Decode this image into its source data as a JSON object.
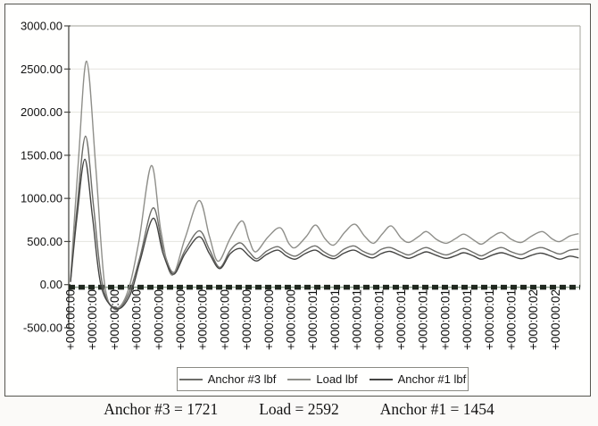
{
  "page": {
    "background": "#fbfaf8",
    "frame_border_color": "#55554f"
  },
  "chart_data": {
    "type": "line",
    "title": "",
    "xlabel": "",
    "ylabel": "",
    "ylim": [
      -500,
      3000
    ],
    "grid": "horizontal-faint",
    "legend_position": "bottom-center",
    "axis_color": "#4a4a46",
    "grid_color": "#e5e4de",
    "plot_border_color": "#b3b3ad",
    "tick_text_color": "#111111",
    "y_ticks": [
      {
        "label": "3000.00",
        "value": 3000
      },
      {
        "label": "2500.00",
        "value": 2500
      },
      {
        "label": "2000.00",
        "value": 2000
      },
      {
        "label": "1500.00",
        "value": 1500
      },
      {
        "label": "1000.00",
        "value": 1000
      },
      {
        "label": "500.00",
        "value": 500
      },
      {
        "label": "0.00",
        "value": 0
      },
      {
        "label": "-500.00",
        "value": -500
      }
    ],
    "x_tick_labels": [
      "+000:00:00",
      "+000:00:00",
      "+000:00:00",
      "+000:00:00",
      "+000:00:00",
      "+000:00:00",
      "+000:00:00",
      "+000:00:00",
      "+000:00:00",
      "+000:00:00",
      "+000:00:00",
      "+000:00:01",
      "+000:00:01",
      "+000:00:01",
      "+000:00:01",
      "+000:00:01",
      "+000:00:01",
      "+000:00:01",
      "+000:00:01",
      "+000:00:01",
      "+000:00:01",
      "+000:00:02",
      "+000:00:02"
    ],
    "baseline": {
      "value": -30,
      "color": "#20281f",
      "underlay_color": "#8ca18c",
      "dash": [
        7,
        4
      ],
      "width": 5.5
    },
    "series": [
      {
        "name": "Anchor #3 lbf",
        "color": "#6e6e6a",
        "peak": 1721,
        "points": [
          [
            0,
            40
          ],
          [
            0.3,
            900
          ],
          [
            0.68,
            1721
          ],
          [
            1.05,
            900
          ],
          [
            1.45,
            0
          ],
          [
            2.05,
            -290
          ],
          [
            2.65,
            -100
          ],
          [
            3.15,
            320
          ],
          [
            3.75,
            890
          ],
          [
            4.2,
            420
          ],
          [
            4.67,
            140
          ],
          [
            5.2,
            400
          ],
          [
            5.84,
            625
          ],
          [
            6.3,
            410
          ],
          [
            6.77,
            200
          ],
          [
            7.25,
            400
          ],
          [
            7.7,
            485
          ],
          [
            8.1,
            380
          ],
          [
            8.45,
            300
          ],
          [
            8.9,
            390
          ],
          [
            9.4,
            440
          ],
          [
            9.8,
            370
          ],
          [
            10.2,
            330
          ],
          [
            10.65,
            400
          ],
          [
            11.1,
            450
          ],
          [
            11.5,
            380
          ],
          [
            11.95,
            330
          ],
          [
            12.4,
            410
          ],
          [
            12.85,
            450
          ],
          [
            13.25,
            390
          ],
          [
            13.7,
            350
          ],
          [
            14.1,
            410
          ],
          [
            14.5,
            430
          ],
          [
            14.95,
            380
          ],
          [
            15.35,
            345
          ],
          [
            15.8,
            400
          ],
          [
            16.15,
            430
          ],
          [
            16.6,
            380
          ],
          [
            17.05,
            345
          ],
          [
            17.5,
            390
          ],
          [
            17.85,
            420
          ],
          [
            18.3,
            370
          ],
          [
            18.65,
            335
          ],
          [
            19.1,
            390
          ],
          [
            19.55,
            430
          ],
          [
            20.0,
            380
          ],
          [
            20.45,
            350
          ],
          [
            20.9,
            400
          ],
          [
            21.35,
            430
          ],
          [
            21.8,
            390
          ],
          [
            22.2,
            355
          ],
          [
            22.65,
            400
          ],
          [
            23.05,
            410
          ]
        ]
      },
      {
        "name": "Load lbf",
        "color": "#8f8f8a",
        "peak": 2592,
        "points": [
          [
            0,
            60
          ],
          [
            0.35,
            1400
          ],
          [
            0.73,
            2592
          ],
          [
            1.15,
            1350
          ],
          [
            1.55,
            0
          ],
          [
            2.05,
            -270
          ],
          [
            2.6,
            -80
          ],
          [
            3.1,
            500
          ],
          [
            3.67,
            1380
          ],
          [
            4.1,
            620
          ],
          [
            4.6,
            110
          ],
          [
            5.2,
            540
          ],
          [
            5.84,
            975
          ],
          [
            6.3,
            560
          ],
          [
            6.7,
            270
          ],
          [
            7.25,
            540
          ],
          [
            7.78,
            740
          ],
          [
            8.1,
            520
          ],
          [
            8.4,
            380
          ],
          [
            8.95,
            550
          ],
          [
            9.51,
            660
          ],
          [
            9.9,
            480
          ],
          [
            10.2,
            430
          ],
          [
            10.7,
            560
          ],
          [
            11.12,
            690
          ],
          [
            11.55,
            530
          ],
          [
            11.95,
            460
          ],
          [
            12.45,
            610
          ],
          [
            12.9,
            700
          ],
          [
            13.35,
            560
          ],
          [
            13.75,
            480
          ],
          [
            14.15,
            590
          ],
          [
            14.55,
            680
          ],
          [
            15.0,
            540
          ],
          [
            15.35,
            490
          ],
          [
            15.8,
            560
          ],
          [
            16.15,
            615
          ],
          [
            16.6,
            525
          ],
          [
            17.05,
            480
          ],
          [
            17.5,
            540
          ],
          [
            17.85,
            585
          ],
          [
            18.3,
            515
          ],
          [
            18.65,
            470
          ],
          [
            19.1,
            550
          ],
          [
            19.55,
            605
          ],
          [
            20.0,
            525
          ],
          [
            20.45,
            490
          ],
          [
            20.9,
            560
          ],
          [
            21.4,
            615
          ],
          [
            21.85,
            530
          ],
          [
            22.2,
            500
          ],
          [
            22.65,
            565
          ],
          [
            23.05,
            590
          ]
        ]
      },
      {
        "name": "Anchor #1 lbf",
        "color": "#454543",
        "peak": 1454,
        "points": [
          [
            0,
            30
          ],
          [
            0.3,
            800
          ],
          [
            0.65,
            1454
          ],
          [
            1.0,
            780
          ],
          [
            1.4,
            -30
          ],
          [
            2.1,
            -280
          ],
          [
            2.7,
            -120
          ],
          [
            3.15,
            270
          ],
          [
            3.75,
            770
          ],
          [
            4.2,
            360
          ],
          [
            4.67,
            120
          ],
          [
            5.2,
            360
          ],
          [
            5.84,
            555
          ],
          [
            6.3,
            360
          ],
          [
            6.77,
            185
          ],
          [
            7.25,
            360
          ],
          [
            7.7,
            420
          ],
          [
            8.1,
            330
          ],
          [
            8.45,
            275
          ],
          [
            8.9,
            350
          ],
          [
            9.4,
            400
          ],
          [
            9.8,
            330
          ],
          [
            10.2,
            295
          ],
          [
            10.65,
            360
          ],
          [
            11.1,
            400
          ],
          [
            11.5,
            340
          ],
          [
            11.95,
            300
          ],
          [
            12.4,
            365
          ],
          [
            12.85,
            400
          ],
          [
            13.25,
            350
          ],
          [
            13.7,
            310
          ],
          [
            14.1,
            360
          ],
          [
            14.5,
            385
          ],
          [
            14.95,
            340
          ],
          [
            15.35,
            305
          ],
          [
            15.8,
            350
          ],
          [
            16.15,
            380
          ],
          [
            16.6,
            340
          ],
          [
            17.05,
            305
          ],
          [
            17.5,
            340
          ],
          [
            17.85,
            370
          ],
          [
            18.3,
            330
          ],
          [
            18.65,
            295
          ],
          [
            19.1,
            340
          ],
          [
            19.55,
            370
          ],
          [
            20.0,
            335
          ],
          [
            20.45,
            300
          ],
          [
            20.9,
            340
          ],
          [
            21.35,
            365
          ],
          [
            21.8,
            330
          ],
          [
            22.2,
            295
          ],
          [
            22.65,
            330
          ],
          [
            23.05,
            310
          ]
        ]
      }
    ]
  },
  "caption": {
    "items": [
      "Anchor #3 = 1721",
      "Load = 2592",
      "Anchor #1 = 1454"
    ]
  }
}
